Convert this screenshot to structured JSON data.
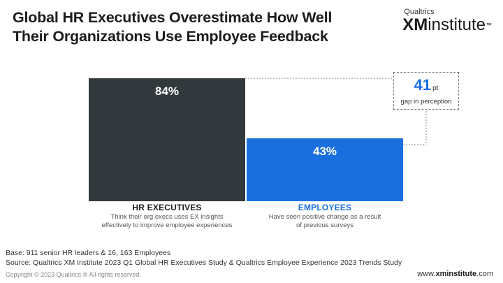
{
  "title": {
    "line1": "Global HR Executives Overestimate How Well",
    "line2": "Their Organizations Use Employee Feedback"
  },
  "logo": {
    "small": "Qualtrics",
    "xm": "XM",
    "institute": "institute",
    "tm": "™"
  },
  "callout": {
    "value": "41",
    "unit": "pt",
    "text": "gap in perception"
  },
  "categories": [
    {
      "title": "HR EXECUTIVES",
      "desc1": "Think their org execs uses EX insights",
      "desc2": "effectively to improve employee experiences"
    },
    {
      "title": "EMPLOYEES",
      "desc1": "Have seen positive change as a result",
      "desc2": "of previous surveys"
    }
  ],
  "footer": {
    "base": "Base: 911 senior HR leaders & 16, 163 Employees",
    "source": "Source: Qualtrics XM Institute 2023 Q1 Global HR Executives Study & Qualtrics Employee Experience 2023 Trends Study",
    "copyright": "Copyright © 2023 Qualtrics ® All rights reserved.",
    "website_prefix": "www.",
    "website_bold": "xminstitute",
    "website_suffix": ".com"
  },
  "colors": {
    "hr_bar": "#32393d",
    "employee_bar": "#1a6fdf",
    "hr_title": "#1d1d1d",
    "employee_title": "#1a6fdf"
  },
  "chart_data": {
    "type": "bar",
    "categories": [
      "HR EXECUTIVES",
      "EMPLOYEES"
    ],
    "values": [
      84,
      43
    ],
    "value_labels": [
      "84%",
      "43%"
    ],
    "ylim": [
      0,
      84
    ],
    "grid": false,
    "legend": "none"
  }
}
